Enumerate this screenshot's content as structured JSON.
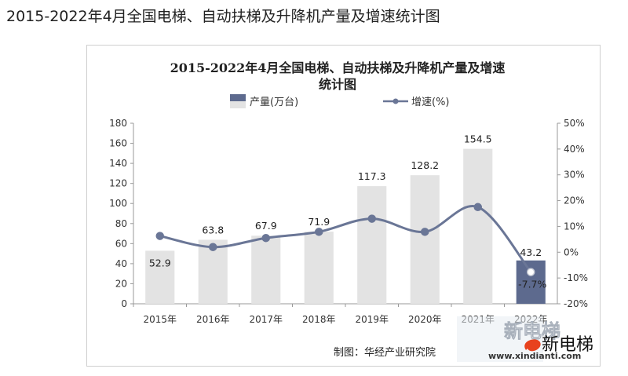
{
  "page": {
    "title": "2015-2022年4月全国电梯、自动扶梯及升降机产量及增速统计图"
  },
  "chart_data": {
    "type": "bar",
    "title_line1": "2015-2022年4月全国电梯、自动扶梯及升降机产量及增速",
    "title_line2": "统计图",
    "categories": [
      "2015年",
      "2016年",
      "2017年",
      "2018年",
      "2019年",
      "2020年",
      "2021年",
      "2022年"
    ],
    "series": [
      {
        "name": "产量(万台)",
        "type": "bar",
        "values": [
          52.9,
          63.8,
          67.9,
          71.9,
          117.3,
          128.2,
          154.5,
          43.2
        ],
        "value_labels": [
          "52.9",
          "63.8",
          "67.9",
          "71.9",
          "117.3",
          "128.2",
          "154.5",
          "43.2"
        ],
        "colors": [
          "#e3e3e3",
          "#e3e3e3",
          "#e3e3e3",
          "#e3e3e3",
          "#e3e3e3",
          "#e3e3e3",
          "#e3e3e3",
          "#5d6a8e"
        ],
        "axis": "left"
      },
      {
        "name": "增速(%)",
        "type": "line",
        "values": [
          6.3,
          2.0,
          5.5,
          7.9,
          13.0,
          7.9,
          17.5,
          -7.7
        ],
        "value_labels": [
          "",
          "",
          "",
          "",
          "",
          "",
          "",
          "-7.7%"
        ],
        "color": "#6a7696",
        "axis": "right"
      }
    ],
    "y_left": {
      "ylim": [
        0,
        180
      ],
      "ticks": [
        "0",
        "20",
        "40",
        "60",
        "80",
        "100",
        "120",
        "140",
        "160",
        "180"
      ]
    },
    "y_right": {
      "ylim": [
        -20,
        50
      ],
      "ticks": [
        "-20%",
        "-10%",
        "0%",
        "10%",
        "20%",
        "30%",
        "40%",
        "50%"
      ]
    },
    "grid": false,
    "legend_position": "top",
    "source": "制图：华经产业研究院",
    "watermark": {
      "text": "新电梯",
      "url": "www.xindianti.com"
    }
  }
}
